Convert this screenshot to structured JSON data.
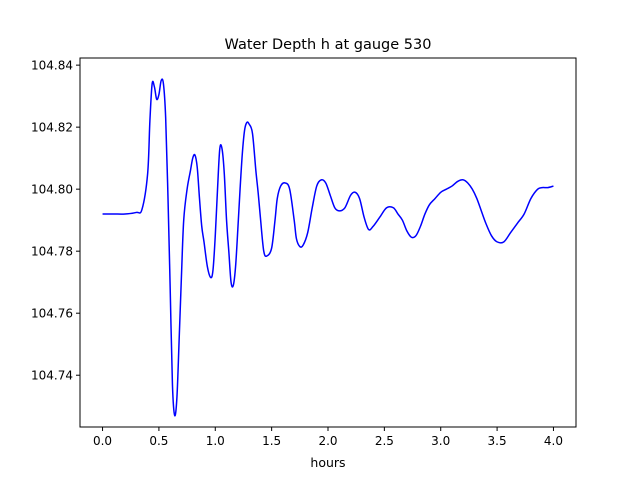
{
  "chart_data": {
    "type": "line",
    "title": "Water Depth h at gauge 530",
    "xlabel": "hours",
    "ylabel": "",
    "xlim": [
      -0.2,
      4.2
    ],
    "ylim": [
      104.7233,
      104.8423
    ],
    "xticks": [
      0.0,
      0.5,
      1.0,
      1.5,
      2.0,
      2.5,
      3.0,
      3.5,
      4.0
    ],
    "xtick_labels": [
      "0.0",
      "0.5",
      "1.0",
      "1.5",
      "2.0",
      "2.5",
      "3.0",
      "3.5",
      "4.0"
    ],
    "yticks": [
      104.74,
      104.76,
      104.78,
      104.8,
      104.82,
      104.84
    ],
    "ytick_labels": [
      "104.74",
      "104.76",
      "104.78",
      "104.80",
      "104.82",
      "104.84"
    ],
    "grid": false,
    "line_color": "#0000ff",
    "series": [
      {
        "x": [
          0.0,
          0.1,
          0.2,
          0.3,
          0.35,
          0.4,
          0.42,
          0.44,
          0.46,
          0.48,
          0.5,
          0.52,
          0.54,
          0.56,
          0.58,
          0.6,
          0.62,
          0.64,
          0.66,
          0.68,
          0.7,
          0.72,
          0.75,
          0.78,
          0.8,
          0.82,
          0.84,
          0.86,
          0.88,
          0.9,
          0.93,
          0.96,
          0.98,
          1.0,
          1.02,
          1.04,
          1.06,
          1.08,
          1.1,
          1.12,
          1.14,
          1.16,
          1.18,
          1.2,
          1.22,
          1.24,
          1.26,
          1.28,
          1.3,
          1.33,
          1.36,
          1.38,
          1.4,
          1.43,
          1.46,
          1.5,
          1.53,
          1.55,
          1.58,
          1.62,
          1.66,
          1.7,
          1.72,
          1.75,
          1.78,
          1.82,
          1.86,
          1.9,
          1.94,
          1.98,
          2.02,
          2.06,
          2.1,
          2.15,
          2.2,
          2.24,
          2.28,
          2.32,
          2.36,
          2.4,
          2.46,
          2.52,
          2.58,
          2.62,
          2.66,
          2.7,
          2.74,
          2.78,
          2.82,
          2.86,
          2.9,
          2.95,
          3.0,
          3.05,
          3.1,
          3.15,
          3.2,
          3.24,
          3.28,
          3.32,
          3.36,
          3.4,
          3.45,
          3.5,
          3.56,
          3.62,
          3.68,
          3.74,
          3.8,
          3.86,
          3.9,
          3.95,
          4.0
        ],
        "y": [
          104.792,
          104.792,
          104.792,
          104.7925,
          104.7935,
          104.805,
          104.822,
          104.834,
          104.833,
          104.829,
          104.8305,
          104.835,
          104.834,
          104.823,
          104.798,
          104.768,
          104.737,
          104.727,
          104.733,
          104.752,
          104.772,
          104.79,
          104.8,
          104.806,
          104.81,
          104.811,
          104.807,
          104.797,
          104.788,
          104.783,
          104.775,
          104.7715,
          104.774,
          104.785,
          104.8,
          104.813,
          104.813,
          104.805,
          104.79,
          104.78,
          104.77,
          104.769,
          104.775,
          104.787,
          104.8,
          104.8115,
          104.819,
          104.8215,
          104.821,
          104.818,
          104.806,
          104.799,
          104.791,
          104.78,
          104.7785,
          104.781,
          104.79,
          104.797,
          104.801,
          104.802,
          104.8,
          104.79,
          104.784,
          104.7815,
          104.782,
          104.786,
          104.794,
          104.801,
          104.803,
          104.802,
          104.798,
          104.794,
          104.793,
          104.794,
          104.798,
          104.799,
          104.797,
          104.791,
          104.787,
          104.788,
          104.791,
          104.794,
          104.794,
          104.792,
          104.79,
          104.7865,
          104.7845,
          104.785,
          104.788,
          104.792,
          104.795,
          104.797,
          104.799,
          104.8,
          104.801,
          104.8025,
          104.803,
          104.802,
          104.8,
          104.797,
          104.793,
          104.789,
          104.785,
          104.783,
          104.783,
          104.786,
          104.789,
          104.792,
          104.797,
          104.8,
          104.8005,
          104.8005,
          104.801
        ]
      }
    ]
  }
}
